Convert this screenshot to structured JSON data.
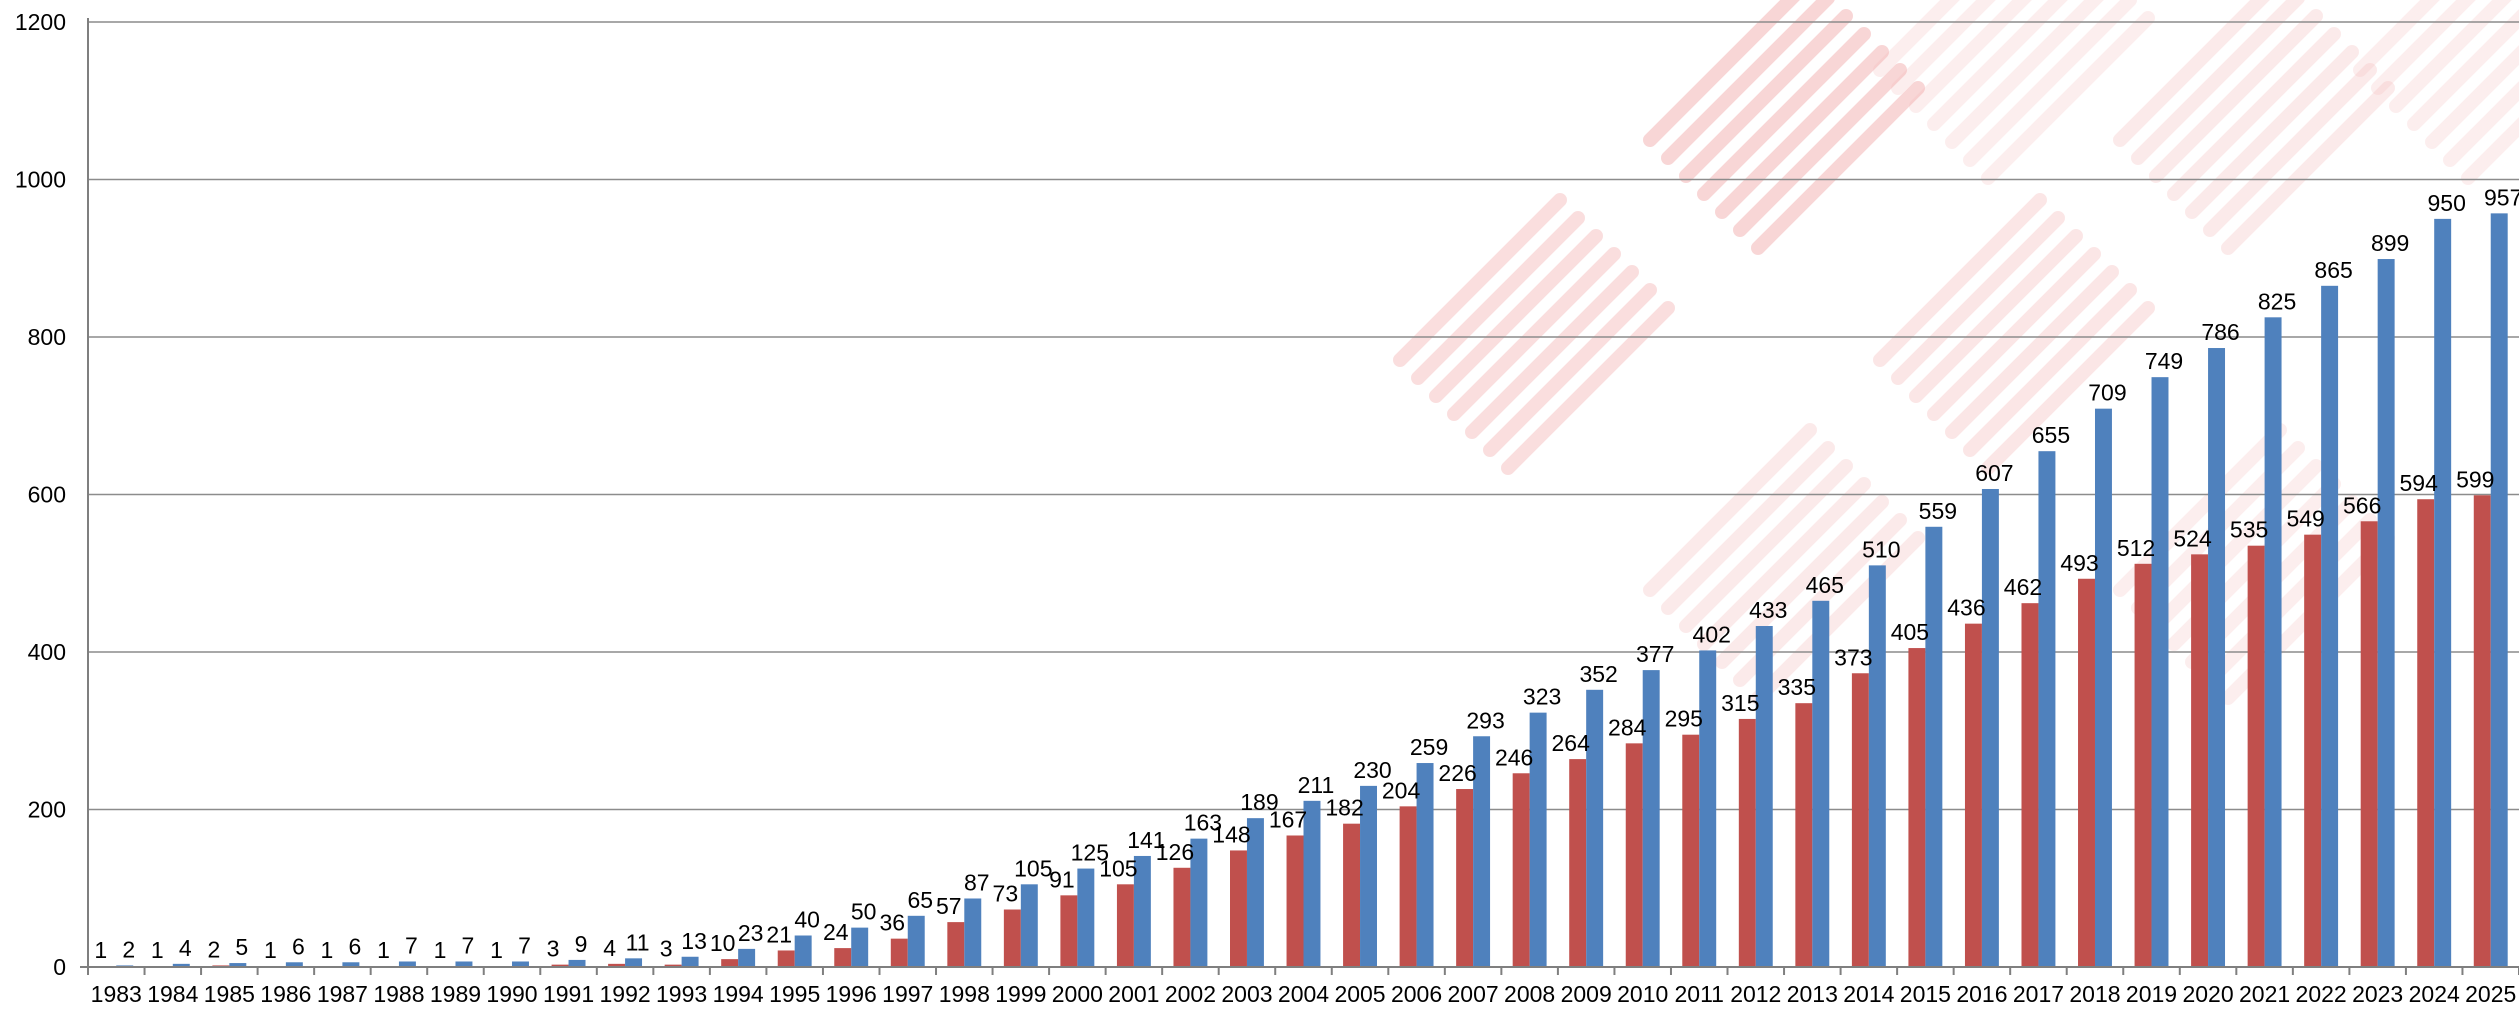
{
  "chart_data": {
    "type": "bar",
    "title": "",
    "xlabel": "",
    "ylabel": "",
    "ylim": [
      0,
      1200
    ],
    "yticks": [
      0,
      200,
      400,
      600,
      800,
      1000,
      1200
    ],
    "grid": true,
    "legend": "none",
    "categories": [
      "1983",
      "1984",
      "1985",
      "1986",
      "1987",
      "1988",
      "1989",
      "1990",
      "1991",
      "1992",
      "1993",
      "1994",
      "1995",
      "1996",
      "1997",
      "1998",
      "1999",
      "2000",
      "2001",
      "2002",
      "2003",
      "2004",
      "2005",
      "2006",
      "2007",
      "2008",
      "2009",
      "2010",
      "2011",
      "2012",
      "2013",
      "2014",
      "2015",
      "2016",
      "2017",
      "2018",
      "2019",
      "2020",
      "2021",
      "2022",
      "2023",
      "2024",
      "2025"
    ],
    "series": [
      {
        "color": "#c0504d",
        "values": [
          1,
          1,
          2,
          1,
          1,
          1,
          1,
          1,
          3,
          4,
          3,
          10,
          21,
          24,
          36,
          57,
          73,
          91,
          105,
          126,
          148,
          167,
          182,
          204,
          226,
          246,
          264,
          284,
          295,
          315,
          335,
          373,
          405,
          436,
          462,
          493,
          512,
          524,
          535,
          549,
          566,
          594,
          599
        ]
      },
      {
        "color": "#4f81bd",
        "values": [
          2,
          4,
          5,
          6,
          6,
          7,
          7,
          7,
          9,
          11,
          13,
          23,
          40,
          50,
          65,
          87,
          105,
          125,
          141,
          163,
          189,
          211,
          230,
          259,
          293,
          323,
          352,
          377,
          402,
          433,
          465,
          510,
          559,
          607,
          655,
          709,
          749,
          786,
          825,
          865,
          899,
          950,
          957
        ]
      }
    ]
  }
}
